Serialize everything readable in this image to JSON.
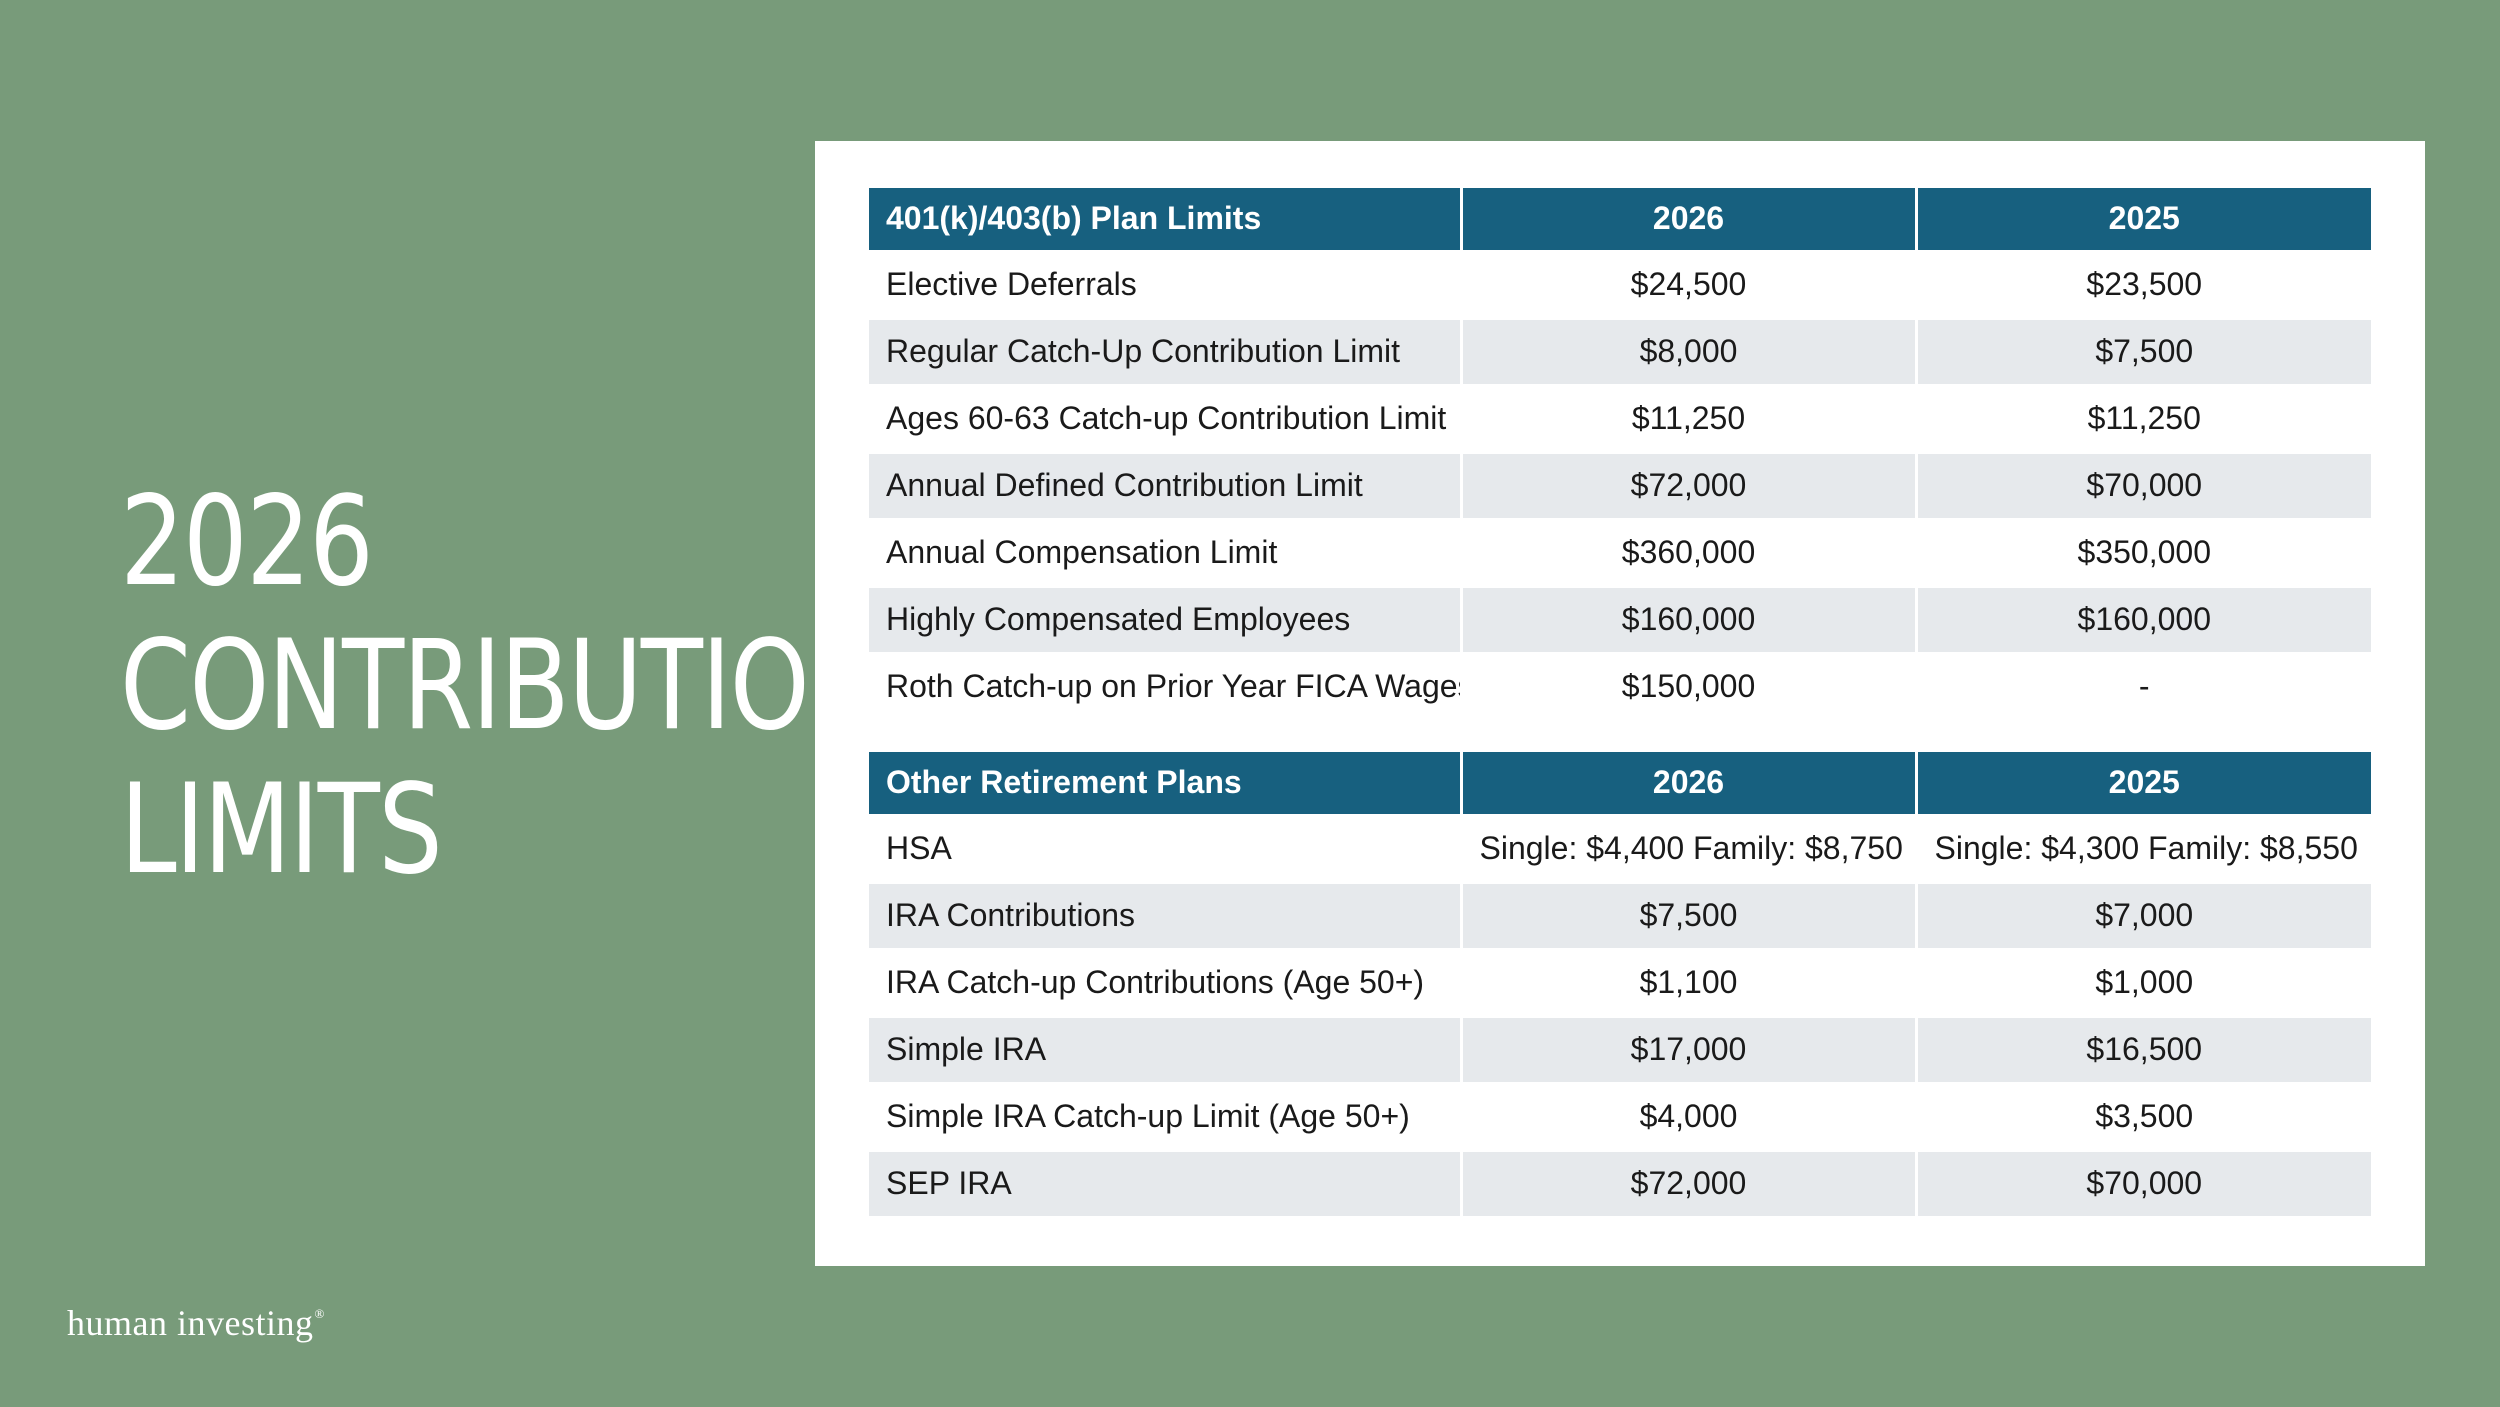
{
  "headline": [
    "2026",
    "CONTRIBUTION",
    "LIMITS"
  ],
  "brand": {
    "name": "human investing",
    "mark": "®"
  },
  "colors": {
    "background": "#789b7a",
    "header": "#17607f",
    "row_shade": "#e6e9ec",
    "card": "#ffffff"
  },
  "plan_limits": {
    "headers": [
      "401(k)/403(b) Plan Limits",
      "2026",
      "2025"
    ],
    "rows": [
      {
        "label": "Elective Deferrals",
        "y2026": "$24,500",
        "y2025": "$23,500"
      },
      {
        "label": "Regular Catch-Up Contribution Limit",
        "y2026": "$8,000",
        "y2025": "$7,500"
      },
      {
        "label": "Ages 60-63 Catch-up Contribution Limit",
        "y2026": "$11,250",
        "y2025": "$11,250"
      },
      {
        "label": "Annual Defined Contribution Limit",
        "y2026": "$72,000",
        "y2025": "$70,000"
      },
      {
        "label": "Annual Compensation Limit",
        "y2026": "$360,000",
        "y2025": "$350,000"
      },
      {
        "label": "Highly Compensated Employees",
        "y2026": "$160,000",
        "y2025": "$160,000"
      },
      {
        "label": "Roth Catch-up on Prior Year FICA Wages",
        "y2026": "$150,000",
        "y2025": "-"
      }
    ]
  },
  "other_plans": {
    "headers": [
      "Other Retirement Plans",
      "2026",
      "2025"
    ],
    "rows": [
      {
        "label": "HSA",
        "y2026": "Single: $4,400 Family: $8,750",
        "y2025": "Single: $4,300 Family: $8,550"
      },
      {
        "label": "IRA Contributions",
        "y2026": "$7,500",
        "y2025": "$7,000"
      },
      {
        "label": "IRA Catch-up Contributions (Age 50+)",
        "y2026": "$1,100",
        "y2025": "$1,000"
      },
      {
        "label": "Simple IRA",
        "y2026": "$17,000",
        "y2025": "$16,500"
      },
      {
        "label": "Simple IRA Catch-up Limit (Age 50+)",
        "y2026": "$4,000",
        "y2025": "$3,500"
      },
      {
        "label": "SEP IRA",
        "y2026": "$72,000",
        "y2025": "$70,000"
      }
    ]
  }
}
